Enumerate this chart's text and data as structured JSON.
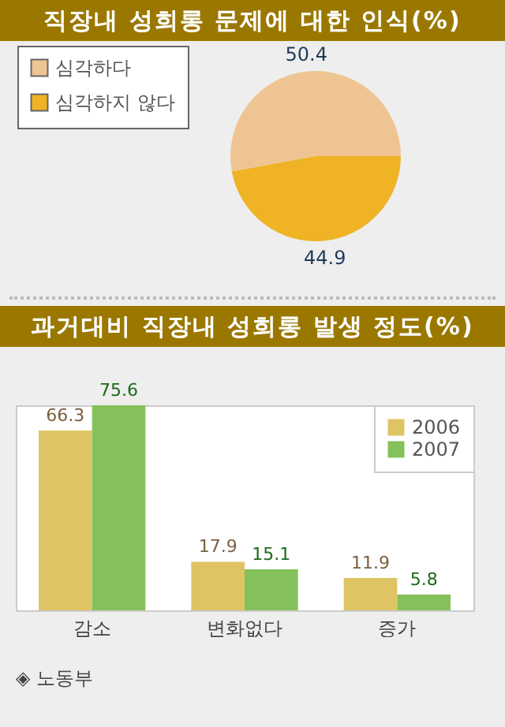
{
  "chart_data": [
    {
      "type": "pie",
      "title": "직장내 성희롱 문제에 대한 인식(%)",
      "categories": [
        "심각하다",
        "심각하지 않다"
      ],
      "values": [
        50.4,
        44.9
      ],
      "colors": [
        "#eec592",
        "#efb325"
      ],
      "data_labels": true,
      "legend": "left"
    },
    {
      "type": "bar",
      "title": "과거대비 직장내 성희롱 발생 정도(%)",
      "categories": [
        "감소",
        "변화없다",
        "증가"
      ],
      "series": [
        {
          "name": "2006",
          "color": "#dfc464",
          "values": [
            66.3,
            17.9,
            11.9
          ]
        },
        {
          "name": "2007",
          "color": "#85c15a",
          "values": [
            75.6,
            15.1,
            5.8
          ]
        }
      ],
      "data_labels": true,
      "legend": "top right",
      "annotations": [
        "◈ 노동부"
      ]
    }
  ]
}
